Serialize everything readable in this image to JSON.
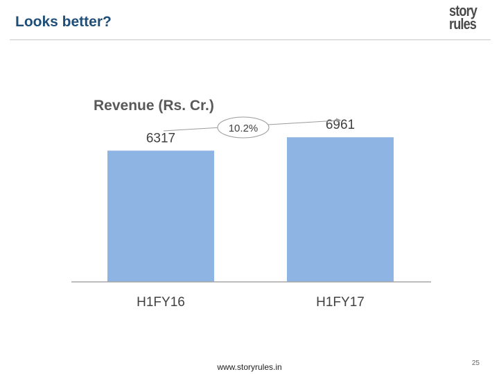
{
  "slide": {
    "title": "Looks better?",
    "footer_url": "www.storyrules.in",
    "page_number": "25"
  },
  "logo": {
    "line1": "story",
    "line2": "rules"
  },
  "chart_data": {
    "type": "bar",
    "title": "Revenue (Rs. Cr.)",
    "categories": [
      "H1FY16",
      "H1FY17"
    ],
    "values": [
      6317,
      6961
    ],
    "data_labels": [
      "6317",
      "6961"
    ],
    "growth_annotation": "10.2%",
    "ylim": [
      0,
      8000
    ],
    "bar_color": "#8eb4e3",
    "grid": false,
    "legend": "none",
    "xlabel": "",
    "ylabel": ""
  }
}
